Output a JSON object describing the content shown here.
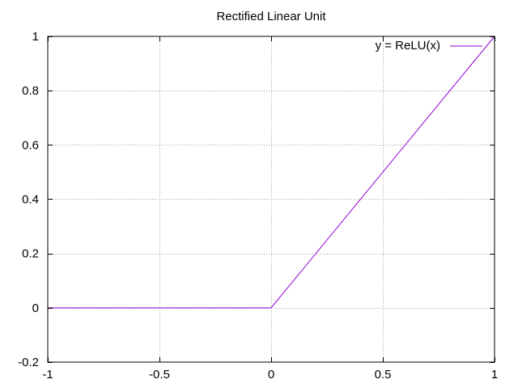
{
  "chart_data": {
    "type": "line",
    "title": "Rectified Linear Unit",
    "xlabel": "",
    "ylabel": "",
    "xlim": [
      -1,
      1
    ],
    "ylim": [
      -0.2,
      1
    ],
    "x_ticks": [
      -1,
      -0.5,
      0,
      0.5,
      1
    ],
    "y_ticks": [
      -0.2,
      0,
      0.2,
      0.4,
      0.6,
      0.8,
      1
    ],
    "x_tick_labels": [
      "-1",
      "-0.5",
      "0",
      "0.5",
      "1"
    ],
    "y_tick_labels": [
      "-0.2",
      "0",
      "0.2",
      "0.4",
      "0.6",
      "0.8",
      "1"
    ],
    "grid": true,
    "legend_position": "top-right",
    "series": [
      {
        "name": "y = ReLU(x)",
        "color": "#9400d3",
        "x": [
          -1,
          0,
          1
        ],
        "y": [
          0,
          0,
          1
        ]
      }
    ]
  }
}
